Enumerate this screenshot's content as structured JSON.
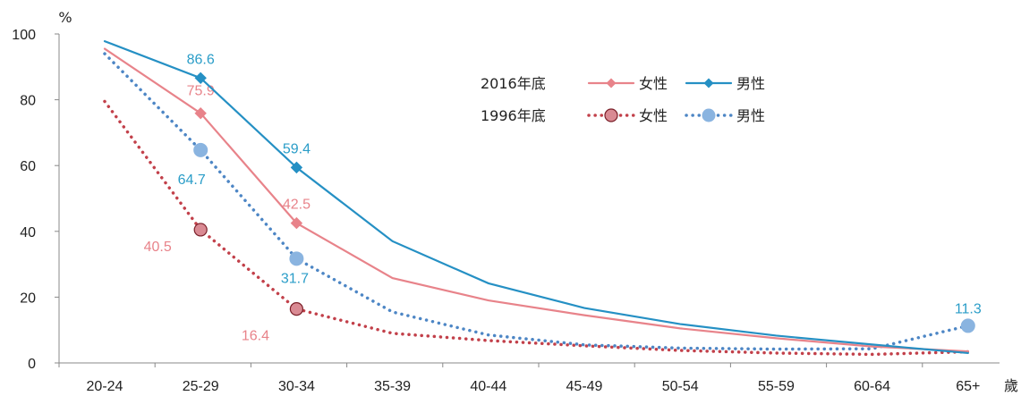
{
  "chart_data": {
    "type": "line",
    "ylabel": "%",
    "xlabel": "歲",
    "ylim": [
      0,
      100
    ],
    "yticks": [
      0,
      20,
      40,
      60,
      80,
      100
    ],
    "categories": [
      "20-24",
      "25-29",
      "30-34",
      "35-39",
      "40-44",
      "45-49",
      "50-54",
      "55-59",
      "60-64",
      "65+"
    ],
    "legend": {
      "position": "top-right",
      "groups": [
        {
          "year_label": "2016年底",
          "female_label": "女性",
          "male_label": "男性"
        },
        {
          "year_label": "1996年底",
          "female_label": "女性",
          "male_label": "男性"
        }
      ]
    },
    "series": [
      {
        "group": "2016年底",
        "gender": "女性",
        "style": "solid",
        "marker": "diamond",
        "color": "#e8838a",
        "values": [
          95.5,
          75.9,
          42.5,
          25.8,
          19.0,
          14.5,
          10.5,
          7.5,
          5.0,
          3.5
        ],
        "labels": [
          null,
          "75.9",
          "42.5",
          null,
          null,
          null,
          null,
          null,
          null,
          null
        ]
      },
      {
        "group": "2016年底",
        "gender": "男性",
        "style": "solid",
        "marker": "diamond",
        "color": "#2590c4",
        "values": [
          97.8,
          86.6,
          59.4,
          37.0,
          24.2,
          16.7,
          11.8,
          8.3,
          5.6,
          3.0
        ],
        "labels": [
          null,
          "86.6",
          "59.4",
          null,
          null,
          null,
          null,
          null,
          null,
          null
        ]
      },
      {
        "group": "1996年底",
        "gender": "女性",
        "style": "dotted",
        "marker": "circle",
        "color": "#c2404a",
        "values": [
          79.5,
          40.5,
          16.4,
          9.0,
          6.8,
          5.2,
          3.8,
          3.0,
          2.6,
          3.4
        ],
        "labels": [
          null,
          "40.5",
          "16.4",
          null,
          null,
          null,
          null,
          null,
          null,
          null
        ]
      },
      {
        "group": "1996年底",
        "gender": "男性",
        "style": "dotted",
        "marker": "circle",
        "color": "#4d86c5",
        "values": [
          94.0,
          64.7,
          31.7,
          15.5,
          8.5,
          5.5,
          4.5,
          4.2,
          4.3,
          11.3
        ],
        "labels": [
          null,
          "64.7",
          "31.7",
          null,
          null,
          null,
          null,
          null,
          null,
          "11.3"
        ]
      }
    ],
    "label_colors": {
      "female": "#e8838a",
      "male": "#2a9dc8"
    },
    "axis_color": "#888888",
    "grid": false
  }
}
